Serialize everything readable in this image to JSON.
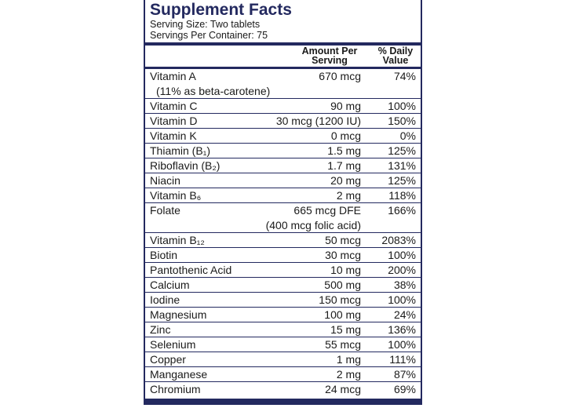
{
  "header": {
    "title": "Supplement Facts",
    "serving_size": "Serving Size: Two tablets",
    "servings_per_container": "Servings Per Container: 75"
  },
  "columns": {
    "amount": "Amount Per Serving",
    "daily_value": "% Daily Value"
  },
  "rows": [
    {
      "name": "Vitamin A",
      "name_note": "(11% as beta-carotene)",
      "amount": "670 mcg",
      "dv": "74%"
    },
    {
      "name": "Vitamin C",
      "amount": "90 mg",
      "dv": "100%"
    },
    {
      "name": "Vitamin D",
      "amount": "30 mcg (1200 IU)",
      "dv": "150%"
    },
    {
      "name": "Vitamin K",
      "amount": "0 mcg",
      "dv": "0%"
    },
    {
      "name": "Thiamin (B₁)",
      "amount": "1.5 mg",
      "dv": "125%"
    },
    {
      "name": "Riboflavin (B₂)",
      "amount": "1.7 mg",
      "dv": "131%"
    },
    {
      "name": "Niacin",
      "amount": "20 mg",
      "dv": "125%"
    },
    {
      "name": "Vitamin B₆",
      "amount": "2 mg",
      "dv": "118%"
    },
    {
      "name": "Folate",
      "amount": "665 mcg DFE",
      "amount_note": "(400 mcg folic acid)",
      "dv": "166%"
    },
    {
      "name": "Vitamin B₁₂",
      "amount": "50 mcg",
      "dv": "2083%"
    },
    {
      "name": "Biotin",
      "amount": "30 mcg",
      "dv": "100%"
    },
    {
      "name": "Pantothenic Acid",
      "amount": "10 mg",
      "dv": "200%"
    },
    {
      "name": "Calcium",
      "amount": "500 mg",
      "dv": "38%"
    },
    {
      "name": "Iodine",
      "amount": "150 mcg",
      "dv": "100%"
    },
    {
      "name": "Magnesium",
      "amount": "100 mg",
      "dv": "24%"
    },
    {
      "name": "Zinc",
      "amount": "15 mg",
      "dv": "136%"
    },
    {
      "name": "Selenium",
      "amount": "55 mcg",
      "dv": "100%"
    },
    {
      "name": "Copper",
      "amount": "1 mg",
      "dv": "111%"
    },
    {
      "name": "Manganese",
      "amount": "2 mg",
      "dv": "87%"
    },
    {
      "name": "Chromium",
      "amount": "24 mcg",
      "dv": "69%"
    }
  ]
}
